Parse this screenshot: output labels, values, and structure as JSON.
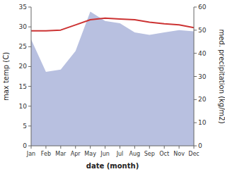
{
  "chart_data": {
    "type": "line",
    "xlabel": "date (month)",
    "ylabel": "max temp (C)",
    "y2label": "med. precipitation (kg/m2)",
    "categories": [
      "Jan",
      "Feb",
      "Mar",
      "Apr",
      "May",
      "Jun",
      "Jul",
      "Aug",
      "Sep",
      "Oct",
      "Nov",
      "Dec"
    ],
    "series": [
      {
        "type": "area",
        "axis": "y2",
        "color": "#b8c0e0",
        "values": [
          46.0,
          32.0,
          33.0,
          41.0,
          58.0,
          54.0,
          53.0,
          49.0,
          48.0,
          49.0,
          50.0,
          49.5
        ]
      },
      {
        "type": "line",
        "color": "#cc3333",
        "values": [
          29.0,
          29.0,
          29.2,
          30.5,
          31.8,
          32.2,
          32.0,
          31.8,
          31.2,
          30.8,
          30.5,
          29.8
        ]
      }
    ],
    "ylim": [
      0,
      35
    ],
    "yticks": [
      0,
      5,
      10,
      15,
      20,
      25,
      30,
      35
    ],
    "y2lim": [
      0,
      60
    ],
    "y2ticks": [
      0,
      10,
      20,
      30,
      40,
      50,
      60
    ],
    "grid": false
  }
}
